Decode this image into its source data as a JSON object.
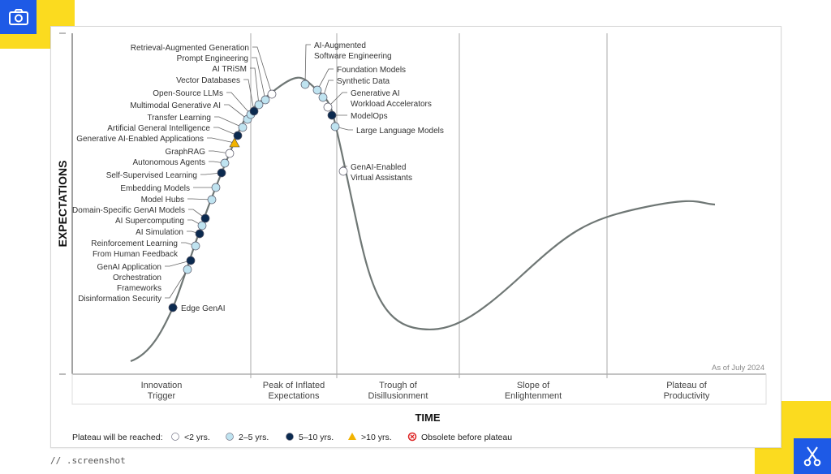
{
  "axis": {
    "y_label": "EXPECTATIONS",
    "x_label": "TIME",
    "as_of": "As of July 2024"
  },
  "phases": [
    "Innovation\nTrigger",
    "Peak of Inflated\nExpectations",
    "Trough of\nDisillusionment",
    "Slope of\nEnlightenment",
    "Plateau of\nProductivity"
  ],
  "legend": {
    "title": "Plateau will be reached:",
    "items": [
      {
        "label": "<2 yrs.",
        "marker": "white-circle"
      },
      {
        "label": "2–5 yrs.",
        "marker": "light-blue-circle"
      },
      {
        "label": "5–10 yrs.",
        "marker": "dark-blue-circle"
      },
      {
        "label": ">10 yrs.",
        "marker": "yellow-triangle"
      },
      {
        "label": "Obsolete before plateau",
        "marker": "red-x-circle"
      }
    ]
  },
  "colors": {
    "white": "#ffffff",
    "light": "#bfe3f0",
    "dark": "#0b2a4f",
    "triangle": "#f2b300",
    "curve": "#6f7775",
    "yellow": "#fbdb1f",
    "blue": "#1e5ae6"
  },
  "technologies": [
    {
      "name": "Edge GenAI",
      "type": "dark"
    },
    {
      "name": "Disinformation Security",
      "type": "light"
    },
    {
      "name": "GenAI Application\nOrchestration\nFrameworks",
      "type": "dark"
    },
    {
      "name": "Reinforcement Learning\nFrom Human Feedback",
      "type": "light"
    },
    {
      "name": "AI Simulation",
      "type": "dark"
    },
    {
      "name": "AI Supercomputing",
      "type": "light"
    },
    {
      "name": "Domain-Specific GenAI Models",
      "type": "dark"
    },
    {
      "name": "Model Hubs",
      "type": "light"
    },
    {
      "name": "Embedding Models",
      "type": "light"
    },
    {
      "name": "Self-Supervised Learning",
      "type": "dark"
    },
    {
      "name": "Autonomous Agents",
      "type": "light"
    },
    {
      "name": "GraphRAG",
      "type": "white"
    },
    {
      "name": "Generative AI-Enabled Applications",
      "type": "triangle"
    },
    {
      "name": "Artificial General Intelligence",
      "type": "dark"
    },
    {
      "name": "Transfer Learning",
      "type": "light"
    },
    {
      "name": "Multimodal Generative AI",
      "type": "light"
    },
    {
      "name": "Open-Source LLMs",
      "type": "light"
    },
    {
      "name": "Vector Databases",
      "type": "dark"
    },
    {
      "name": "AI TRiSM",
      "type": "light"
    },
    {
      "name": "Prompt Engineering",
      "type": "light"
    },
    {
      "name": "Retrieval-Augmented Generation",
      "type": "white"
    },
    {
      "name": "AI-Augmented\nSoftware Engineering",
      "type": "light"
    },
    {
      "name": "Foundation Models",
      "type": "light"
    },
    {
      "name": "Synthetic Data",
      "type": "light"
    },
    {
      "name": "Generative AI\nWorkload Accelerators",
      "type": "white"
    },
    {
      "name": "ModelOps",
      "type": "dark"
    },
    {
      "name": "Large Language Models",
      "type": "light"
    },
    {
      "name": "GenAI-Enabled\nVirtual Assistants",
      "type": "white"
    }
  ],
  "footer": {
    "brand": "// .screenshot"
  }
}
